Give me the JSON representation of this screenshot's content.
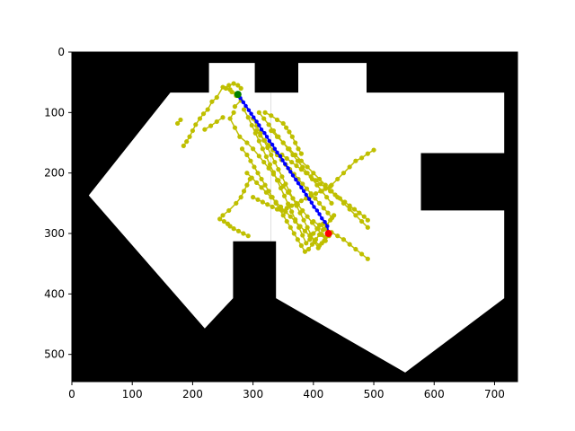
{
  "chart_data": {
    "type": "scatter",
    "title": "",
    "xlabel": "",
    "ylabel": "",
    "xlim": [
      0,
      738
    ],
    "ylim": [
      545,
      0
    ],
    "y_axis_inverted": true,
    "x_ticks": [
      0,
      100,
      200,
      300,
      400,
      500,
      600,
      700
    ],
    "y_ticks": [
      0,
      100,
      200,
      300,
      400,
      500
    ],
    "grid": false,
    "legend": "none",
    "background_image": {
      "description": "binary occupancy map",
      "free_color": "#ffffff",
      "obstacle_color": "#000000",
      "free_polygons": [
        {
          "name": "left-region",
          "points": [
            [
              227,
              18
            ],
            [
              303,
              18
            ],
            [
              303,
              67
            ],
            [
              330,
              67
            ],
            [
              330,
              313
            ],
            [
              267,
              313
            ],
            [
              267,
              407
            ],
            [
              220,
              457
            ],
            [
              28,
              237
            ],
            [
              163,
              67
            ],
            [
              227,
              67
            ]
          ]
        },
        {
          "name": "right-region",
          "points": [
            [
              375,
              18
            ],
            [
              488,
              18
            ],
            [
              488,
              67
            ],
            [
              716,
              67
            ],
            [
              716,
              167
            ],
            [
              578,
              167
            ],
            [
              578,
              262
            ],
            [
              716,
              262
            ],
            [
              716,
              407
            ],
            [
              552,
              530
            ],
            [
              338,
              407
            ],
            [
              338,
              313
            ],
            [
              330,
              313
            ],
            [
              330,
              67
            ],
            [
              375,
              67
            ]
          ]
        }
      ]
    },
    "series": [
      {
        "role": "tree-nodes",
        "color": "#bfbf00",
        "marker": "circle",
        "x": [
          275,
          262,
          250,
          240,
          232,
          225,
          218,
          212,
          205,
          200,
          195,
          190,
          185,
          180,
          175,
          220,
          230,
          240,
          250,
          270,
          280,
          268,
          262,
          270,
          278,
          290,
          300,
          310,
          318,
          326,
          334,
          342,
          350,
          358,
          366,
          374,
          382,
          390,
          398,
          406,
          414,
          420,
          300,
          306,
          312,
          318,
          324,
          330,
          336,
          342,
          348,
          354,
          360,
          366,
          372,
          378,
          384,
          390,
          396,
          402,
          408,
          414,
          420,
          428,
          285,
          292,
          298,
          304,
          310,
          316,
          322,
          328,
          334,
          340,
          346,
          352,
          358,
          364,
          370,
          376,
          382,
          388,
          394,
          400,
          408,
          416,
          310,
          318,
          326,
          334,
          342,
          350,
          358,
          366,
          374,
          382,
          390,
          398,
          406,
          414,
          422,
          430,
          400,
          410,
          420,
          430,
          440,
          450,
          460,
          470,
          480,
          490,
          430,
          440,
          450,
          460,
          470,
          480,
          490,
          500,
          320,
          330,
          340,
          350,
          355,
          360,
          365,
          370,
          375,
          380,
          330,
          340,
          350,
          360,
          370,
          380,
          390,
          400,
          410,
          420,
          430,
          440,
          450,
          460,
          470,
          480,
          490,
          282,
          290,
          296,
          302,
          308,
          314,
          320,
          326,
          332,
          338,
          344,
          350,
          356,
          362,
          368,
          374,
          380,
          386,
          392,
          398,
          404,
          410,
          416,
          422,
          428,
          434,
          290,
          298,
          306,
          314,
          322,
          330,
          338,
          346,
          354,
          362,
          370,
          378,
          386,
          394,
          402,
          410,
          418,
          426,
          305,
          312,
          319,
          326,
          333,
          340,
          347,
          354,
          361,
          368,
          375,
          382,
          389,
          396,
          403,
          410,
          417,
          424,
          431,
          300,
          308,
          316,
          324,
          332,
          340,
          348,
          356,
          364,
          372,
          380,
          388,
          396,
          404,
          412,
          420,
          428,
          295,
          290,
          285,
          280,
          272,
          260,
          250,
          245,
          252,
          258,
          262,
          268,
          276,
          284,
          292,
          348,
          356,
          364,
          372,
          380,
          388,
          396,
          404,
          412,
          420,
          428,
          436,
          444,
          452,
          460,
          468,
          476,
          484,
          490,
          280,
          275,
          268,
          260,
          255,
          265,
          272
        ],
        "y": [
          70,
          62,
          58,
          75,
          82,
          95,
          102,
          110,
          120,
          130,
          140,
          148,
          155,
          112,
          118,
          128,
          122,
          115,
          108,
          90,
          80,
          100,
          110,
          125,
          140,
          150,
          160,
          172,
          182,
          192,
          202,
          212,
          222,
          232,
          242,
          252,
          262,
          272,
          282,
          292,
          302,
          312,
          110,
          122,
          134,
          146,
          158,
          170,
          182,
          194,
          206,
          218,
          230,
          242,
          254,
          266,
          278,
          290,
          302,
          314,
          324,
          316,
          306,
          300,
          95,
          108,
          121,
          134,
          147,
          160,
          173,
          186,
          199,
          212,
          225,
          238,
          251,
          264,
          277,
          290,
          303,
          316,
          310,
          300,
          292,
          284,
          100,
          110,
          120,
          130,
          140,
          150,
          160,
          170,
          180,
          190,
          200,
          210,
          220,
          230,
          240,
          250,
          280,
          286,
          292,
          298,
          304,
          310,
          318,
          326,
          334,
          342,
          220,
          210,
          200,
          190,
          180,
          175,
          168,
          162,
          100,
          105,
          112,
          118,
          125,
          132,
          140,
          150,
          160,
          168,
          130,
          140,
          150,
          160,
          170,
          180,
          190,
          200,
          210,
          220,
          230,
          240,
          250,
          260,
          270,
          280,
          290,
          160,
          170,
          180,
          190,
          200,
          210,
          220,
          230,
          240,
          250,
          260,
          270,
          280,
          290,
          300,
          310,
          320,
          330,
          326,
          318,
          310,
          302,
          294,
          286,
          278,
          270,
          200,
          208,
          216,
          224,
          232,
          240,
          248,
          256,
          264,
          272,
          280,
          288,
          296,
          304,
          312,
          320,
          312,
          304,
          130,
          138,
          146,
          154,
          162,
          170,
          178,
          186,
          194,
          202,
          210,
          218,
          226,
          234,
          242,
          250,
          258,
          266,
          274,
          240,
          244,
          248,
          252,
          256,
          260,
          262,
          258,
          254,
          250,
          246,
          242,
          238,
          234,
          230,
          226,
          222,
          210,
          220,
          230,
          240,
          250,
          262,
          270,
          276,
          280,
          284,
          288,
          292,
          296,
          300,
          304,
          170,
          176,
          182,
          188,
          194,
          200,
          206,
          212,
          218,
          224,
          230,
          236,
          242,
          248,
          254,
          260,
          266,
          272,
          278,
          60,
          55,
          52,
          55,
          60,
          66,
          72
        ]
      },
      {
        "role": "path",
        "color": "#0000ff",
        "marker": "circle",
        "line": true,
        "x": [
          275,
          279,
          284,
          288,
          293,
          297,
          301,
          306,
          310,
          314,
          319,
          323,
          327,
          332,
          336,
          340,
          345,
          349,
          353,
          358,
          362,
          366,
          371,
          375,
          380,
          384,
          388,
          393,
          397,
          401,
          406,
          410,
          414,
          419,
          423,
          425
        ],
        "y": [
          70,
          76,
          83,
          89,
          96,
          102,
          108,
          115,
          121,
          128,
          134,
          140,
          147,
          153,
          160,
          166,
          172,
          179,
          185,
          192,
          198,
          204,
          211,
          217,
          224,
          230,
          236,
          243,
          249,
          256,
          262,
          268,
          275,
          281,
          288,
          300
        ]
      },
      {
        "role": "start",
        "color": "#008000",
        "marker": "circle",
        "x": [
          275
        ],
        "y": [
          70
        ]
      },
      {
        "role": "goal",
        "color": "#ff0000",
        "marker": "circle",
        "x": [
          425
        ],
        "y": [
          300
        ]
      }
    ]
  }
}
